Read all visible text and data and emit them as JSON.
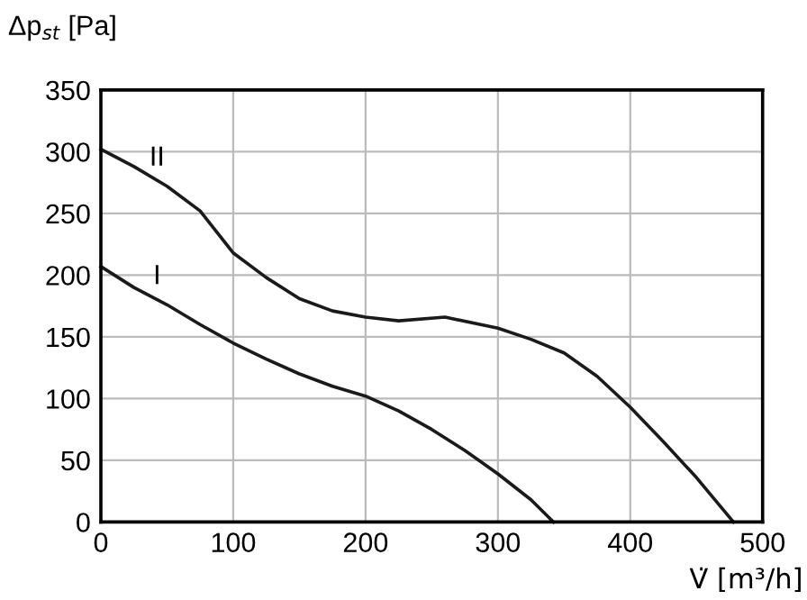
{
  "chart_data": {
    "type": "line",
    "xlabel": "V̇ [m³/h]",
    "ylabel": "Δp$_{st}$ [Pa]",
    "series": [
      {
        "name": "II",
        "color": "#1a1a1a",
        "x": [
          0,
          25,
          50,
          75,
          100,
          125,
          150,
          175,
          200,
          225,
          260,
          300,
          325,
          350,
          375,
          400,
          425,
          450,
          478
        ],
        "values": [
          302,
          288,
          272,
          252,
          218,
          198,
          181,
          171,
          166,
          163,
          166,
          157,
          148,
          137,
          118,
          93,
          65,
          36,
          0
        ]
      },
      {
        "name": "I",
        "color": "#1a1a1a",
        "x": [
          0,
          25,
          50,
          75,
          100,
          125,
          150,
          175,
          200,
          225,
          250,
          275,
          300,
          325,
          342
        ],
        "values": [
          207,
          190,
          176,
          160,
          145,
          132,
          120,
          110,
          102,
          90,
          75,
          58,
          39,
          18,
          0
        ]
      }
    ],
    "xlim": [
      0,
      500
    ],
    "ylim": [
      0,
      350
    ],
    "xticks": [
      0,
      100,
      200,
      300,
      400,
      500
    ],
    "yticks": [
      0,
      50,
      100,
      150,
      200,
      250,
      300,
      350
    ],
    "grid": true,
    "marker": "none",
    "line_style": "solid"
  }
}
